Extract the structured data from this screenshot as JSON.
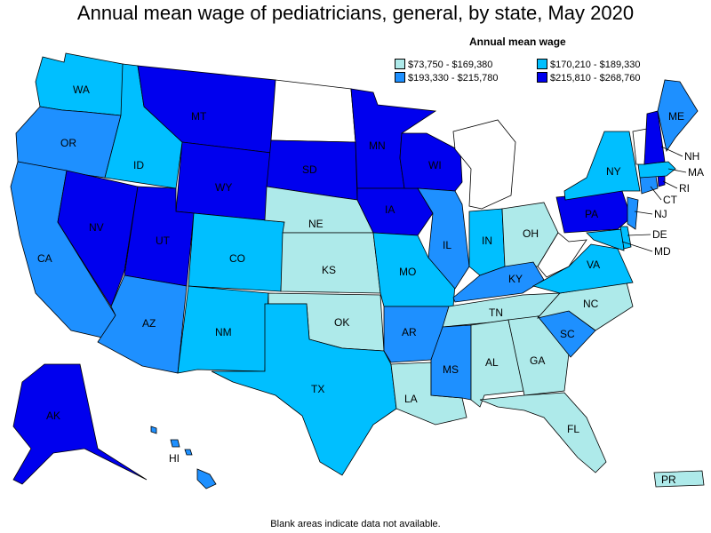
{
  "title": "Annual mean wage of pediatricians, general, by state, May 2020",
  "legend": {
    "title": "Annual mean wage",
    "items": [
      {
        "label": "$73,750 - $169,380",
        "color": "#aeeaea"
      },
      {
        "label": "$170,210 - $189,330",
        "color": "#00bfff"
      },
      {
        "label": "$193,330 - $215,780",
        "color": "#1e90ff"
      },
      {
        "label": "$215,810 - $268,760",
        "color": "#0000ee"
      }
    ]
  },
  "footnote": "Blank areas indicate data not available.",
  "states": {
    "WA": {
      "label": "WA",
      "tier": 1
    },
    "OR": {
      "label": "OR",
      "tier": 2
    },
    "CA": {
      "label": "CA",
      "tier": 2
    },
    "NV": {
      "label": "NV",
      "tier": 3
    },
    "ID": {
      "label": "ID",
      "tier": 1
    },
    "MT": {
      "label": "MT",
      "tier": 3
    },
    "WY": {
      "label": "WY",
      "tier": 3
    },
    "UT": {
      "label": "UT",
      "tier": 3
    },
    "AZ": {
      "label": "AZ",
      "tier": 2
    },
    "CO": {
      "label": "CO",
      "tier": 1
    },
    "NM": {
      "label": "NM",
      "tier": 1
    },
    "ND": {
      "label": "",
      "tier": null
    },
    "SD": {
      "label": "SD",
      "tier": 3
    },
    "NE": {
      "label": "NE",
      "tier": 0
    },
    "KS": {
      "label": "KS",
      "tier": 0
    },
    "OK": {
      "label": "OK",
      "tier": 0
    },
    "TX": {
      "label": "TX",
      "tier": 1
    },
    "MN": {
      "label": "MN",
      "tier": 3
    },
    "IA": {
      "label": "IA",
      "tier": 3
    },
    "MO": {
      "label": "MO",
      "tier": 1
    },
    "AR": {
      "label": "AR",
      "tier": 2
    },
    "LA": {
      "label": "LA",
      "tier": 0
    },
    "WI": {
      "label": "WI",
      "tier": 3
    },
    "IL": {
      "label": "IL",
      "tier": 2
    },
    "MI": {
      "label": "",
      "tier": null
    },
    "IN": {
      "label": "IN",
      "tier": 1
    },
    "OH": {
      "label": "OH",
      "tier": 0
    },
    "KY": {
      "label": "KY",
      "tier": 2
    },
    "TN": {
      "label": "TN",
      "tier": 0
    },
    "MS": {
      "label": "MS",
      "tier": 2
    },
    "AL": {
      "label": "AL",
      "tier": 0
    },
    "GA": {
      "label": "GA",
      "tier": 0
    },
    "FL": {
      "label": "FL",
      "tier": 0
    },
    "SC": {
      "label": "SC",
      "tier": 2
    },
    "NC": {
      "label": "NC",
      "tier": 0
    },
    "VA": {
      "label": "VA",
      "tier": 1
    },
    "WV": {
      "label": "",
      "tier": null
    },
    "PA": {
      "label": "PA",
      "tier": 3
    },
    "NY": {
      "label": "NY",
      "tier": 1
    },
    "VT": {
      "label": "",
      "tier": null
    },
    "NH": {
      "label": "NH",
      "tier": 3
    },
    "ME": {
      "label": "ME",
      "tier": 2
    },
    "MA": {
      "label": "MA",
      "tier": 1
    },
    "RI": {
      "label": "RI",
      "tier": 3
    },
    "CT": {
      "label": "CT",
      "tier": 2
    },
    "NJ": {
      "label": "NJ",
      "tier": 2
    },
    "DE": {
      "label": "DE",
      "tier": 1
    },
    "MD": {
      "label": "MD",
      "tier": 1
    },
    "AK": {
      "label": "AK",
      "tier": 3
    },
    "HI": {
      "label": "HI",
      "tier": 2
    },
    "PR": {
      "label": "PR",
      "tier": 0
    }
  }
}
